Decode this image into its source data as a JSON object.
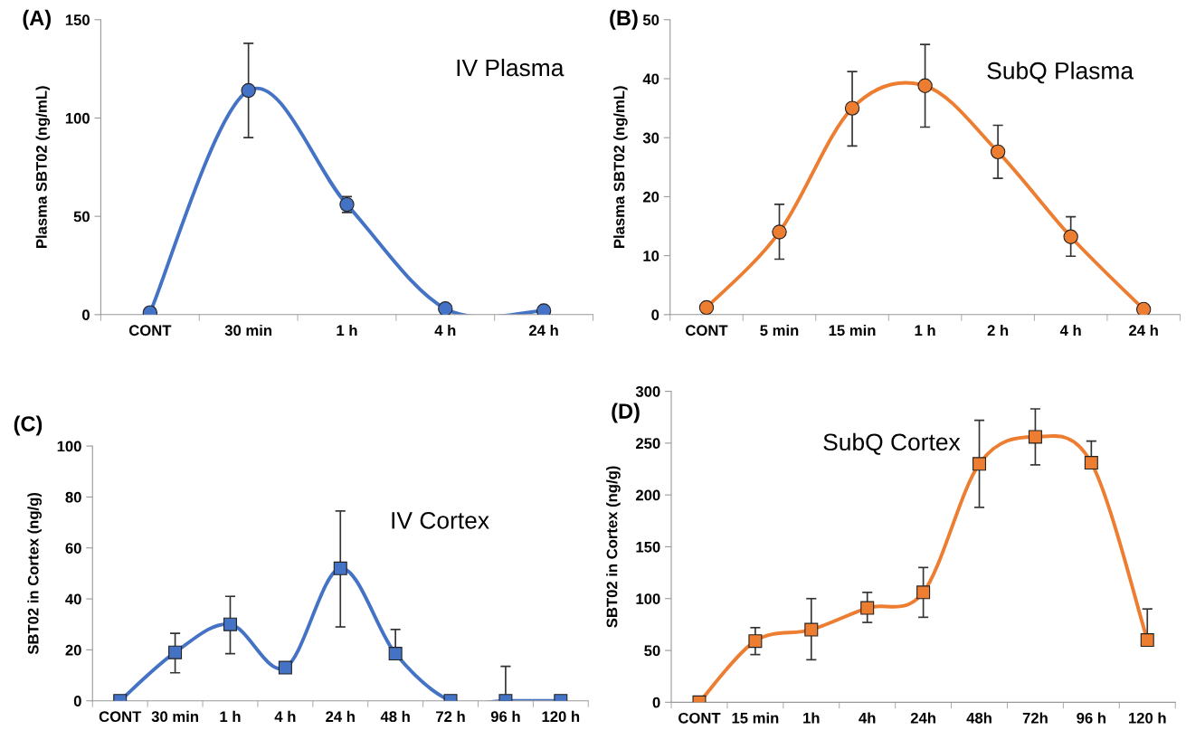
{
  "chart_data": [
    {
      "type": "line",
      "title": "(A)",
      "ylabel": "Plasma SBT02 (ng/mL)",
      "annotations": [
        "IV Plasma"
      ],
      "categories": [
        "CONT",
        "30 min",
        "1 h",
        "4 h",
        "24 h"
      ],
      "ylim": [
        0,
        150
      ],
      "yticks": [
        0,
        50,
        100,
        150
      ],
      "marker": "circle",
      "series": [
        {
          "color": "#4472c4",
          "values": [
            1,
            114,
            56,
            3,
            2
          ],
          "errors": [
            null,
            [
              90,
              138
            ],
            [
              52,
              60
            ],
            null,
            null
          ]
        }
      ]
    },
    {
      "type": "line",
      "title": "(B)",
      "ylabel": "Plasma SBT02 (ng/mL)",
      "annotations": [
        "SubQ Plasma"
      ],
      "categories": [
        "CONT",
        "5 min",
        "15 min",
        "1 h",
        "2 h",
        "4 h",
        "24 h"
      ],
      "ylim": [
        0,
        50
      ],
      "yticks": [
        0,
        10,
        20,
        30,
        40,
        50
      ],
      "marker": "circle",
      "series": [
        {
          "color": "#ed7d31",
          "values": [
            1.2,
            14,
            35,
            38.8,
            27.6,
            13.2,
            0.9
          ],
          "errors": [
            null,
            [
              9.4,
              18.7
            ],
            [
              28.6,
              41.2
            ],
            [
              31.8,
              45.8
            ],
            [
              23.1,
              32.1
            ],
            [
              9.9,
              16.6
            ],
            null
          ]
        }
      ]
    },
    {
      "type": "line",
      "title": "(C)",
      "ylabel": "SBT02 in Cortex (ng/g)",
      "annotations": [
        "IV Cortex"
      ],
      "categories": [
        "CONT",
        "30 min",
        "1 h",
        "4 h",
        "24 h",
        "48 h",
        "72 h",
        "96 h",
        "120 h"
      ],
      "ylim": [
        0,
        100
      ],
      "yticks": [
        0,
        20,
        40,
        60,
        80,
        100
      ],
      "marker": "square",
      "series": [
        {
          "color": "#4472c4",
          "values": [
            0,
            19,
            30,
            13,
            52,
            18.5,
            0,
            0,
            0
          ],
          "errors": [
            null,
            [
              11,
              26.5
            ],
            [
              18.5,
              41
            ],
            null,
            [
              29,
              74.5
            ],
            [
              18.5,
              28
            ],
            null,
            [
              0,
              13.5
            ],
            null
          ]
        }
      ]
    },
    {
      "type": "line",
      "title": "(D)",
      "ylabel": "SBT02 in Cortex (ng/g)",
      "annotations": [
        "SubQ Cortex"
      ],
      "categories": [
        "CONT",
        "15 min",
        "1h",
        "4h",
        "24h",
        "48h",
        "72h",
        "96 h",
        "120 h"
      ],
      "ylim": [
        0,
        300
      ],
      "yticks": [
        0,
        50,
        100,
        150,
        200,
        250,
        300
      ],
      "marker": "square",
      "series": [
        {
          "color": "#ed7d31",
          "values": [
            0,
            59,
            70,
            91,
            106,
            230,
            256,
            231,
            60
          ],
          "errors": [
            null,
            [
              46,
              72
            ],
            [
              41,
              100
            ],
            [
              77,
              106
            ],
            [
              82,
              130
            ],
            [
              188,
              272
            ],
            [
              229,
              283
            ],
            [
              231,
              252
            ],
            [
              60,
              90
            ]
          ]
        }
      ]
    }
  ]
}
